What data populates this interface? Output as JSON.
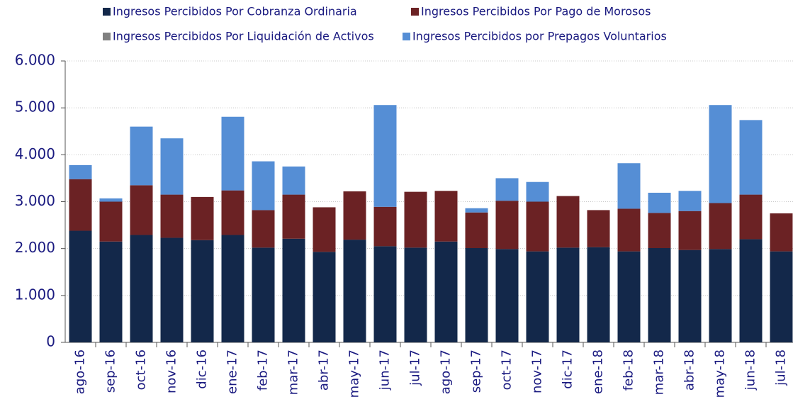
{
  "chart_data": {
    "type": "stacked_bar",
    "categories": [
      "ago-16",
      "sep-16",
      "oct-16",
      "nov-16",
      "dic-16",
      "ene-17",
      "feb-17",
      "mar-17",
      "abr-17",
      "may-17",
      "jun-17",
      "jul-17",
      "ago-17",
      "sep-17",
      "oct-17",
      "nov-17",
      "dic-17",
      "ene-18",
      "feb-18",
      "mar-18",
      "abr-18",
      "may-18",
      "jun-18",
      "jul-18"
    ],
    "series": [
      {
        "name": "Ingresos Percibidos Por Cobranza Ordinaria",
        "color": "#13284a",
        "values": [
          2380,
          2150,
          2290,
          2230,
          2180,
          2290,
          2020,
          2210,
          1930,
          2190,
          2050,
          2020,
          2150,
          2010,
          1990,
          1940,
          2020,
          2030,
          1940,
          2010,
          1970,
          1990,
          2200,
          1940
        ]
      },
      {
        "name": "Ingresos Percibidos Por Pago de Morosos",
        "color": "#6b2224",
        "values": [
          1100,
          850,
          1060,
          920,
          920,
          950,
          800,
          940,
          950,
          1030,
          840,
          1190,
          1080,
          760,
          1030,
          1060,
          1100,
          790,
          910,
          750,
          830,
          980,
          950,
          810
        ]
      },
      {
        "name": "Ingresos Percibidos Por Liquidación de Activos",
        "color": "#808080",
        "values": [
          0,
          0,
          0,
          0,
          0,
          0,
          0,
          0,
          0,
          0,
          0,
          0,
          0,
          0,
          0,
          0,
          0,
          0,
          0,
          0,
          0,
          0,
          0,
          0
        ]
      },
      {
        "name": "Ingresos Percibidos por Prepagos Voluntarios",
        "color": "#558ed5",
        "values": [
          300,
          70,
          1250,
          1200,
          0,
          1570,
          1040,
          600,
          0,
          0,
          2170,
          0,
          0,
          90,
          480,
          420,
          0,
          0,
          970,
          430,
          430,
          2090,
          1590,
          0
        ]
      }
    ],
    "ylim": [
      0,
      6000
    ],
    "yticks": [
      0,
      {
        "value": 1000,
        "label": "1.000"
      },
      {
        "value": 2000,
        "label": "2.000"
      },
      {
        "value": 3000,
        "label": "3.000"
      },
      {
        "value": 4000,
        "label": "4.000"
      },
      {
        "value": 5000,
        "label": "5.000"
      },
      {
        "value": 6000,
        "label": "6.000"
      }
    ],
    "grid": true
  }
}
